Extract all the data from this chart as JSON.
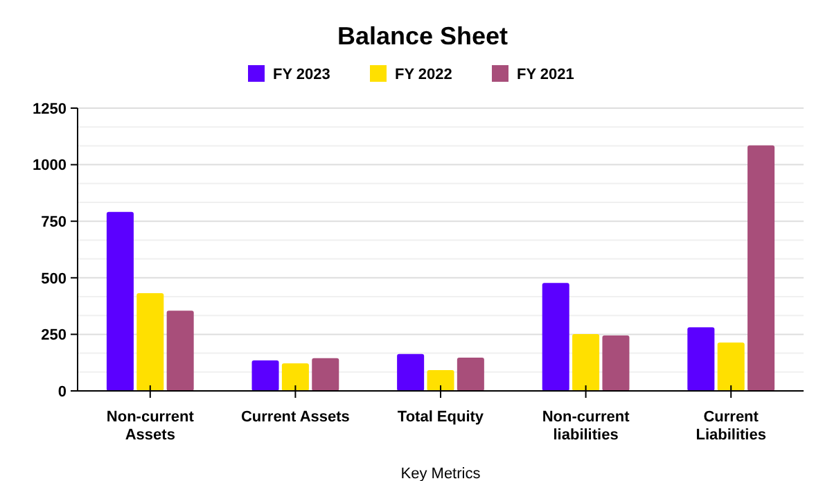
{
  "chart_data": {
    "type": "bar",
    "title": "Balance Sheet",
    "xlabel": "Key Metrics",
    "categories": [
      "Non-current Assets",
      "Current Assets",
      "Total Equity",
      "Non-current liabilities",
      "Current Liabilities"
    ],
    "series": [
      {
        "name": "FY 2023",
        "color": "#5b00ff",
        "values": [
          791,
          135,
          163,
          477,
          281
        ]
      },
      {
        "name": "FY 2022",
        "color": "#ffe000",
        "values": [
          432,
          122,
          92,
          251,
          214
        ]
      },
      {
        "name": "FY 2021",
        "color": "#a84e7a",
        "values": [
          355,
          145,
          147,
          245,
          1085
        ]
      }
    ],
    "ylim": [
      0,
      1250
    ],
    "yticks": [
      0,
      {
        "value": 83.33,
        "label": null
      },
      {
        "value": 166.67,
        "label": null
      },
      250,
      {
        "value": 333.33,
        "label": null
      },
      {
        "value": 416.67,
        "label": null
      },
      500,
      {
        "value": 583.33,
        "label": null
      },
      {
        "value": 666.67,
        "label": null
      },
      750,
      {
        "value": 833.33,
        "label": null
      },
      {
        "value": 916.67,
        "label": null
      },
      1000,
      {
        "value": 1083.33,
        "label": null
      },
      {
        "value": 1166.67,
        "label": null
      },
      1250
    ],
    "grid": true,
    "legend": "top"
  }
}
